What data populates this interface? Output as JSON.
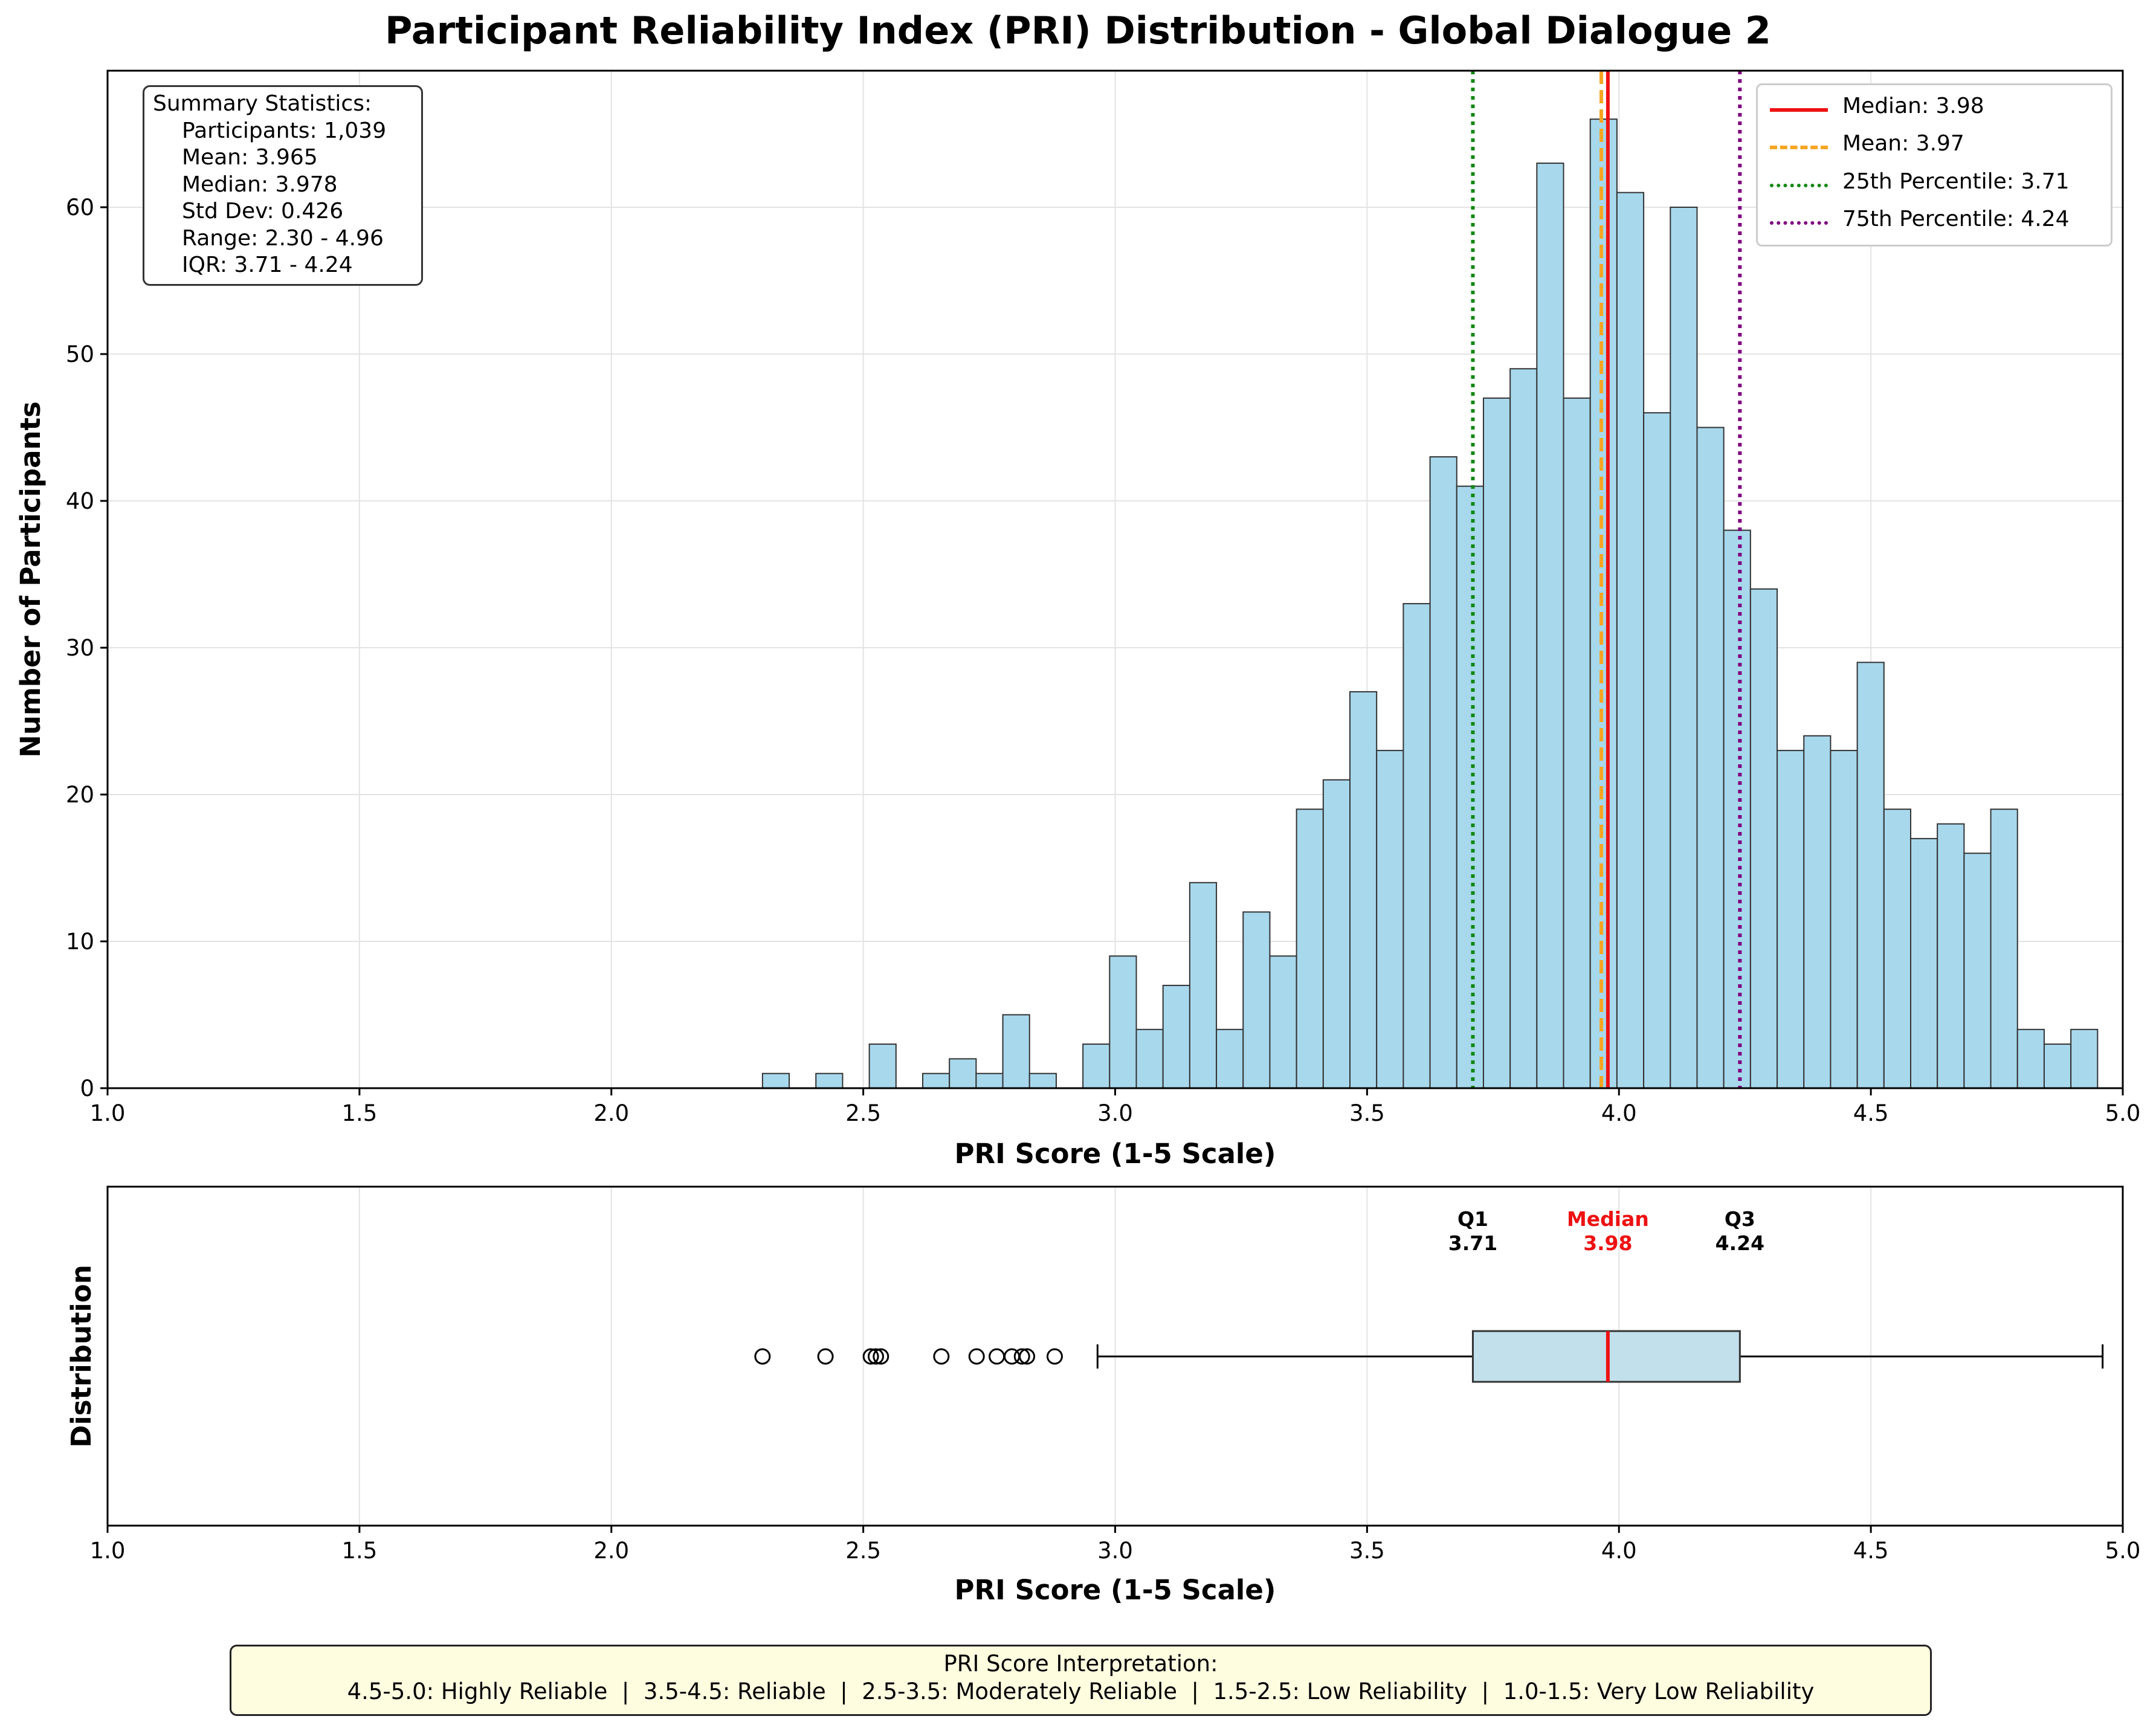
{
  "title": "Participant Reliability Index (PRI) Distribution - Global Dialogue 2",
  "summary": {
    "header": "Summary Statistics:",
    "lines": [
      "Participants: 1,039",
      "Mean: 3.965",
      "Median: 3.978",
      "Std Dev: 0.426",
      "Range: 2.30 - 4.96",
      "IQR: 3.71 - 4.24"
    ]
  },
  "legend": [
    {
      "label": "Median: 3.98",
      "color": "#ee1111",
      "style": "solid"
    },
    {
      "label": "Mean: 3.97",
      "color": "#f5a623",
      "style": "dashed"
    },
    {
      "label": "25th Percentile: 3.71",
      "color": "#118811",
      "style": "dotted"
    },
    {
      "label": "75th Percentile: 4.24",
      "color": "#800080",
      "style": "dotted"
    }
  ],
  "interpretation": {
    "title": "PRI Score Interpretation:",
    "text": "4.5-5.0: Highly Reliable  |  3.5-4.5: Reliable  |  2.5-3.5: Moderately Reliable  |  1.5-2.5: Low Reliability  |  1.0-1.5: Very Low Reliability"
  },
  "colors": {
    "bar_fill": "#a8d8ec",
    "bar_edge": "#333333",
    "box_fill": "#c2e0ec",
    "median": "#ee1111",
    "mean": "#f5a623",
    "q1": "#118811",
    "q3": "#800080",
    "grid": "#e3e3e3"
  },
  "chart_data": [
    {
      "type": "bar",
      "subtype": "histogram",
      "xlabel": "PRI Score (1-5 Scale)",
      "ylabel": "Number of Participants",
      "xlim": [
        1.0,
        5.0
      ],
      "ylim": [
        0,
        69.3
      ],
      "xticks": [
        "1.0",
        "1.5",
        "2.0",
        "2.5",
        "3.0",
        "3.5",
        "4.0",
        "4.5",
        "5.0"
      ],
      "yticks": [
        "0",
        "10",
        "20",
        "30",
        "40",
        "50",
        "60"
      ],
      "grid": true,
      "legend_position": "top-right",
      "bin_start": 2.3,
      "bin_width": 0.053,
      "counts": [
        1,
        0,
        1,
        0,
        3,
        0,
        1,
        2,
        1,
        5,
        1,
        0,
        3,
        9,
        4,
        7,
        14,
        4,
        12,
        9,
        19,
        21,
        27,
        23,
        33,
        43,
        41,
        47,
        49,
        63,
        47,
        66,
        61,
        46,
        60,
        45,
        38,
        34,
        23,
        24,
        23,
        29,
        19,
        17,
        18,
        16,
        19,
        4,
        3,
        4
      ],
      "reference_lines": [
        {
          "name": "Median",
          "x": 3.978
        },
        {
          "name": "Mean",
          "x": 3.965
        },
        {
          "name": "25th Percentile",
          "x": 3.71
        },
        {
          "name": "75th Percentile",
          "x": 4.24
        }
      ]
    },
    {
      "type": "box",
      "xlabel": "PRI Score (1-5 Scale)",
      "ylabel": "Distribution",
      "xlim": [
        1.0,
        5.0
      ],
      "xticks": [
        "1.0",
        "1.5",
        "2.0",
        "2.5",
        "3.0",
        "3.5",
        "4.0",
        "4.5",
        "5.0"
      ],
      "grid": true,
      "q1": 3.71,
      "median": 3.978,
      "q3": 4.24,
      "whisker_low": 2.965,
      "whisker_high": 4.96,
      "outliers": [
        2.3,
        2.425,
        2.515,
        2.525,
        2.535,
        2.655,
        2.725,
        2.765,
        2.795,
        2.815,
        2.825,
        2.88
      ],
      "annotations": [
        {
          "label": "Q1",
          "value": "3.71",
          "x": 3.71,
          "color": "#000000"
        },
        {
          "label": "Median",
          "value": "3.98",
          "x": 3.978,
          "color": "#ee1111"
        },
        {
          "label": "Q3",
          "value": "4.24",
          "x": 4.24,
          "color": "#000000"
        }
      ]
    }
  ]
}
